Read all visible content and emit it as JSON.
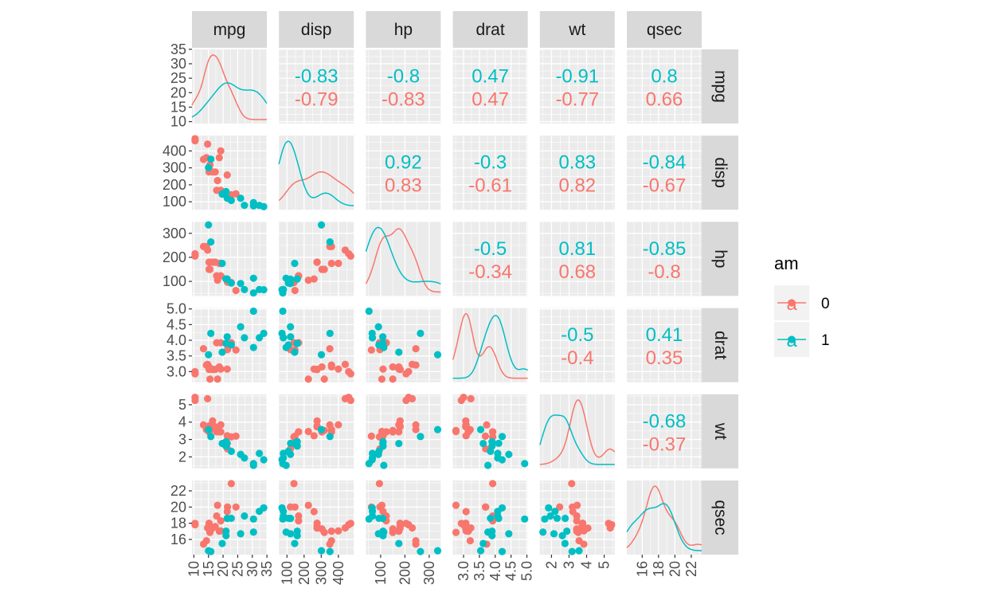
{
  "chart_data": {
    "type": "scatter",
    "variables": [
      "mpg",
      "disp",
      "hp",
      "drat",
      "wt",
      "qsec"
    ],
    "legend": {
      "title": "am",
      "position": "right",
      "entries": [
        {
          "label": "0",
          "glyph": "a",
          "color": "#F8766D"
        },
        {
          "label": "1",
          "glyph": "a",
          "color": "#00BFC4"
        }
      ]
    },
    "groups": [
      {
        "name": "0",
        "color": "#F8766D"
      },
      {
        "name": "1",
        "color": "#00BFC4"
      }
    ],
    "axes": {
      "mpg": {
        "lim": [
          10.4,
          33.9
        ],
        "y_ticks": [
          10,
          15,
          20,
          25,
          30,
          35
        ],
        "x_ticks": [
          10,
          15,
          20,
          25,
          30,
          35
        ],
        "x_tick_labels": [
          "10",
          "15",
          "20",
          "25",
          "30",
          "35"
        ]
      },
      "disp": {
        "lim": [
          71.1,
          472
        ],
        "ticks": [
          100,
          200,
          300,
          400
        ],
        "tick_labels": [
          "100",
          "200",
          "300",
          "400"
        ]
      },
      "hp": {
        "lim": [
          52,
          335
        ],
        "ticks": [
          100,
          200,
          300
        ],
        "tick_labels": [
          "100",
          "200",
          "300"
        ]
      },
      "drat": {
        "lim": [
          2.76,
          4.93
        ],
        "ticks": [
          3.0,
          3.5,
          4.0,
          4.5,
          5.0
        ],
        "tick_labels": [
          "3.0",
          "3.5",
          "4.0",
          "4.5",
          "5.0"
        ]
      },
      "wt": {
        "lim": [
          1.513,
          5.424
        ],
        "ticks": [
          2,
          3,
          4,
          5
        ],
        "tick_labels": [
          "2",
          "3",
          "4",
          "5"
        ]
      },
      "qsec": {
        "lim": [
          14.5,
          22.9
        ],
        "ticks": [
          16,
          18,
          20,
          22
        ],
        "tick_labels": [
          "16",
          "18",
          "20",
          "22"
        ]
      }
    },
    "correlations": [
      {
        "row": "mpg",
        "col": "disp",
        "am1": "-0.83",
        "am0": "-0.79"
      },
      {
        "row": "mpg",
        "col": "hp",
        "am1": "-0.8",
        "am0": "-0.83"
      },
      {
        "row": "mpg",
        "col": "drat",
        "am1": "0.47",
        "am0": "0.47"
      },
      {
        "row": "mpg",
        "col": "wt",
        "am1": "-0.91",
        "am0": "-0.77"
      },
      {
        "row": "mpg",
        "col": "qsec",
        "am1": "0.8",
        "am0": "0.66"
      },
      {
        "row": "disp",
        "col": "hp",
        "am1": "0.92",
        "am0": "0.83"
      },
      {
        "row": "disp",
        "col": "drat",
        "am1": "-0.3",
        "am0": "-0.61"
      },
      {
        "row": "disp",
        "col": "wt",
        "am1": "0.83",
        "am0": "0.82"
      },
      {
        "row": "disp",
        "col": "qsec",
        "am1": "-0.84",
        "am0": "-0.67"
      },
      {
        "row": "hp",
        "col": "drat",
        "am1": "-0.5",
        "am0": "-0.34"
      },
      {
        "row": "hp",
        "col": "wt",
        "am1": "0.81",
        "am0": "0.68"
      },
      {
        "row": "hp",
        "col": "qsec",
        "am1": "-0.85",
        "am0": "-0.8"
      },
      {
        "row": "drat",
        "col": "wt",
        "am1": "-0.5",
        "am0": "-0.4"
      },
      {
        "row": "drat",
        "col": "qsec",
        "am1": "0.41",
        "am0": "0.35"
      },
      {
        "row": "wt",
        "col": "qsec",
        "am1": "-0.68",
        "am0": "-0.37"
      }
    ],
    "observations": {
      "0": [
        {
          "mpg": 21.4,
          "disp": 258.0,
          "hp": 110,
          "drat": 3.08,
          "wt": 3.215,
          "qsec": 19.44
        },
        {
          "mpg": 18.7,
          "disp": 360.0,
          "hp": 175,
          "drat": 3.15,
          "wt": 3.44,
          "qsec": 17.02
        },
        {
          "mpg": 18.1,
          "disp": 225.0,
          "hp": 105,
          "drat": 2.76,
          "wt": 3.46,
          "qsec": 20.22
        },
        {
          "mpg": 14.3,
          "disp": 360.0,
          "hp": 245,
          "drat": 3.21,
          "wt": 3.57,
          "qsec": 15.84
        },
        {
          "mpg": 24.4,
          "disp": 146.7,
          "hp": 62,
          "drat": 3.69,
          "wt": 3.19,
          "qsec": 20.0
        },
        {
          "mpg": 22.8,
          "disp": 140.8,
          "hp": 95,
          "drat": 3.92,
          "wt": 3.15,
          "qsec": 22.9
        },
        {
          "mpg": 19.2,
          "disp": 167.6,
          "hp": 123,
          "drat": 3.92,
          "wt": 3.44,
          "qsec": 18.3
        },
        {
          "mpg": 17.8,
          "disp": 167.6,
          "hp": 123,
          "drat": 3.92,
          "wt": 3.44,
          "qsec": 18.9
        },
        {
          "mpg": 16.4,
          "disp": 275.8,
          "hp": 180,
          "drat": 3.07,
          "wt": 4.07,
          "qsec": 17.4
        },
        {
          "mpg": 17.3,
          "disp": 275.8,
          "hp": 180,
          "drat": 3.07,
          "wt": 3.73,
          "qsec": 17.6
        },
        {
          "mpg": 15.2,
          "disp": 275.8,
          "hp": 180,
          "drat": 3.07,
          "wt": 3.78,
          "qsec": 18.0
        },
        {
          "mpg": 10.4,
          "disp": 472.0,
          "hp": 205,
          "drat": 2.93,
          "wt": 5.25,
          "qsec": 17.98
        },
        {
          "mpg": 10.4,
          "disp": 460.0,
          "hp": 215,
          "drat": 3.0,
          "wt": 5.424,
          "qsec": 17.82
        },
        {
          "mpg": 14.7,
          "disp": 440.0,
          "hp": 230,
          "drat": 3.23,
          "wt": 5.345,
          "qsec": 17.42
        },
        {
          "mpg": 21.5,
          "disp": 120.1,
          "hp": 97,
          "drat": 3.7,
          "wt": 2.465,
          "qsec": 20.01
        },
        {
          "mpg": 15.5,
          "disp": 318.0,
          "hp": 150,
          "drat": 2.76,
          "wt": 3.52,
          "qsec": 16.87
        },
        {
          "mpg": 15.2,
          "disp": 304.0,
          "hp": 150,
          "drat": 3.15,
          "wt": 3.435,
          "qsec": 17.3
        },
        {
          "mpg": 13.3,
          "disp": 350.0,
          "hp": 245,
          "drat": 3.73,
          "wt": 3.84,
          "qsec": 15.41
        },
        {
          "mpg": 19.2,
          "disp": 400.0,
          "hp": 175,
          "drat": 3.08,
          "wt": 3.845,
          "qsec": 17.05
        }
      ],
      "1": [
        {
          "mpg": 21.0,
          "disp": 160.0,
          "hp": 110,
          "drat": 3.9,
          "wt": 2.62,
          "qsec": 16.46
        },
        {
          "mpg": 21.0,
          "disp": 160.0,
          "hp": 110,
          "drat": 3.9,
          "wt": 2.875,
          "qsec": 17.02
        },
        {
          "mpg": 22.8,
          "disp": 108.0,
          "hp": 93,
          "drat": 3.85,
          "wt": 2.32,
          "qsec": 18.61
        },
        {
          "mpg": 32.4,
          "disp": 78.7,
          "hp": 66,
          "drat": 4.08,
          "wt": 2.2,
          "qsec": 19.47
        },
        {
          "mpg": 30.4,
          "disp": 75.7,
          "hp": 52,
          "drat": 4.93,
          "wt": 1.615,
          "qsec": 18.52
        },
        {
          "mpg": 33.9,
          "disp": 71.1,
          "hp": 65,
          "drat": 4.22,
          "wt": 1.835,
          "qsec": 19.9
        },
        {
          "mpg": 27.3,
          "disp": 79.0,
          "hp": 66,
          "drat": 4.08,
          "wt": 1.935,
          "qsec": 18.9
        },
        {
          "mpg": 26.0,
          "disp": 120.3,
          "hp": 91,
          "drat": 4.43,
          "wt": 2.14,
          "qsec": 16.7
        },
        {
          "mpg": 30.4,
          "disp": 95.1,
          "hp": 113,
          "drat": 3.77,
          "wt": 1.513,
          "qsec": 16.9
        },
        {
          "mpg": 15.8,
          "disp": 351.0,
          "hp": 264,
          "drat": 4.22,
          "wt": 3.17,
          "qsec": 14.5
        },
        {
          "mpg": 19.7,
          "disp": 145.0,
          "hp": 175,
          "drat": 3.62,
          "wt": 2.77,
          "qsec": 15.5
        },
        {
          "mpg": 15.0,
          "disp": 301.0,
          "hp": 335,
          "drat": 3.54,
          "wt": 3.57,
          "qsec": 14.6
        },
        {
          "mpg": 21.4,
          "disp": 121.0,
          "hp": 109,
          "drat": 4.11,
          "wt": 2.78,
          "qsec": 18.6
        }
      ]
    }
  }
}
